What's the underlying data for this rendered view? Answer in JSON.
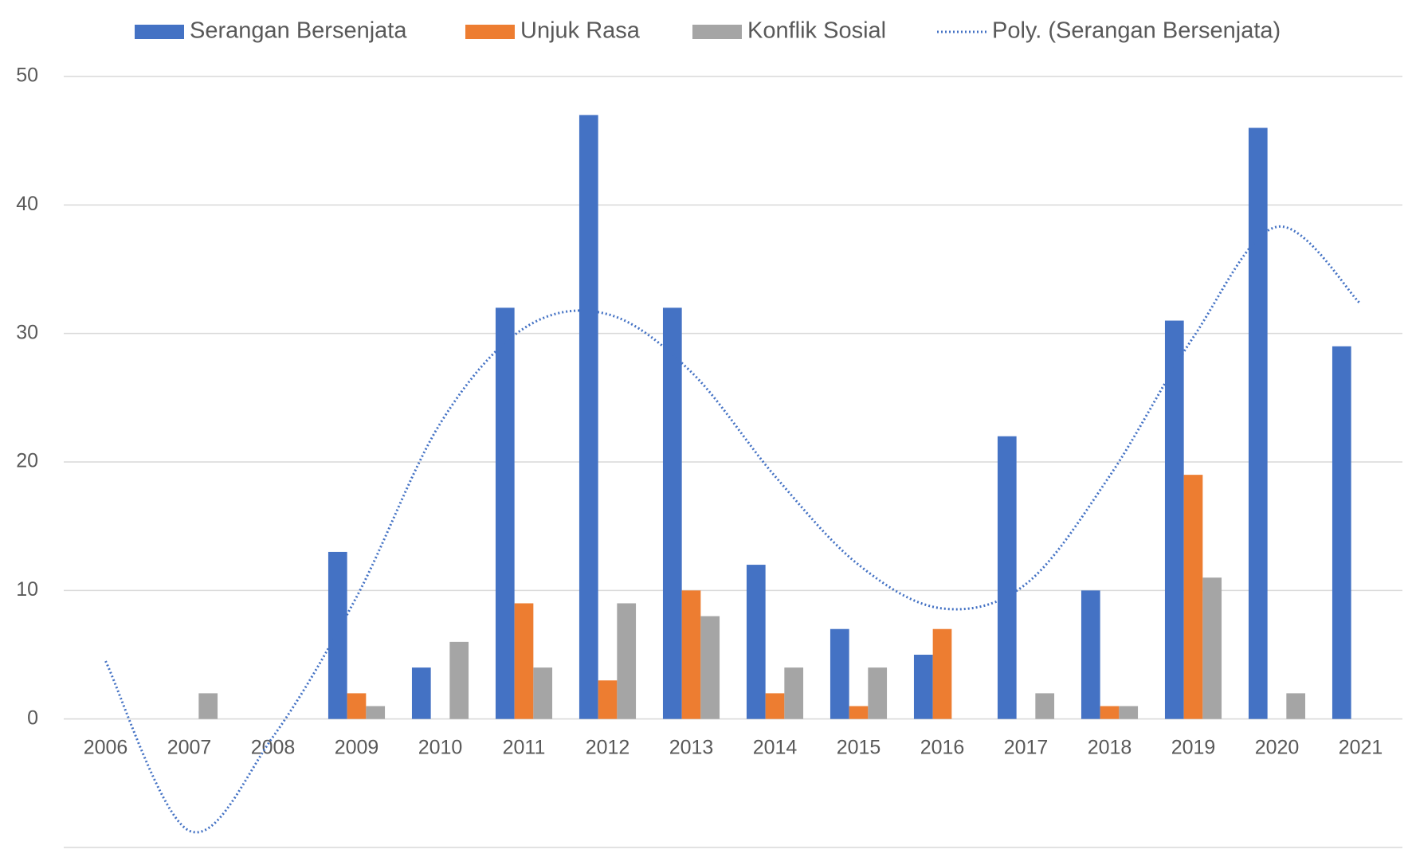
{
  "chart_data": {
    "type": "bar",
    "categories": [
      "2006",
      "2007",
      "2008",
      "2009",
      "2010",
      "2011",
      "2012",
      "2013",
      "2014",
      "2015",
      "2016",
      "2017",
      "2018",
      "2019",
      "2020",
      "2021"
    ],
    "series": [
      {
        "name": "Serangan Bersenjata",
        "color": "#4472c4",
        "values": [
          0,
          0,
          0,
          13,
          4,
          32,
          47,
          32,
          12,
          7,
          5,
          22,
          10,
          31,
          46,
          29
        ]
      },
      {
        "name": "Unjuk Rasa",
        "color": "#ed7d31",
        "values": [
          0,
          0,
          0,
          2,
          0,
          9,
          3,
          10,
          2,
          1,
          7,
          0,
          1,
          19,
          0,
          0
        ]
      },
      {
        "name": "Konflik Sosial",
        "color": "#a5a5a5",
        "values": [
          0,
          2,
          0,
          1,
          6,
          4,
          9,
          8,
          4,
          4,
          0,
          2,
          1,
          11,
          2,
          0
        ]
      },
      {
        "name": "Poly. (Serangan Bersenjata)",
        "color": "#4472c4",
        "type": "line",
        "line_style": "dotted",
        "values": [
          4.5,
          -8.7,
          -1.4,
          9.5,
          23,
          30.4,
          31.5,
          27,
          18.9,
          12,
          8.6,
          10.5,
          18.9,
          29.7,
          38.3,
          32.3
        ]
      }
    ],
    "ylim": [
      -10,
      50
    ],
    "yticks": [
      0,
      10,
      20,
      30,
      40,
      50
    ],
    "grid": true,
    "legend": "top"
  }
}
